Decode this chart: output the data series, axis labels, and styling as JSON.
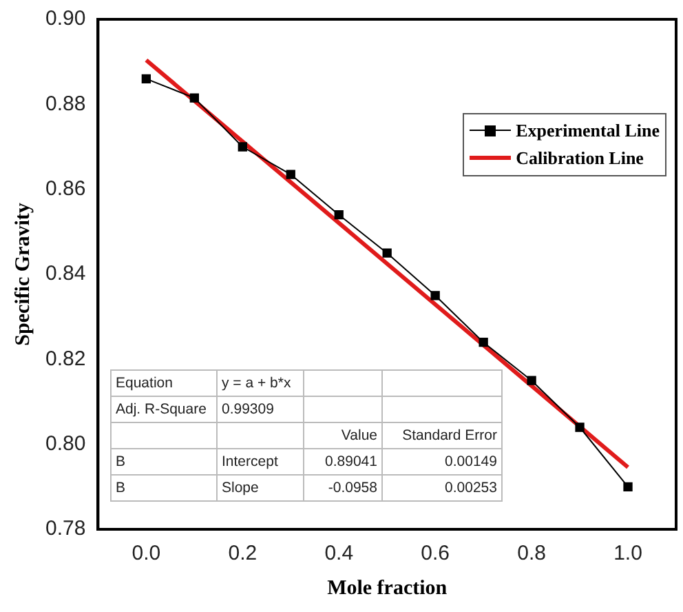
{
  "chart_data": {
    "type": "line",
    "xlabel": "Mole fraction",
    "ylabel": "Specific Gravity",
    "xlim": [
      -0.1,
      1.1
    ],
    "xticks": [
      {
        "value": 0,
        "label": "0.0"
      },
      0.2,
      0.4,
      0.6,
      0.8,
      {
        "value": 1,
        "label": "1.0"
      }
    ],
    "ylim": [
      0.78,
      0.9
    ],
    "yticks": [
      {
        "value": 0.78,
        "label": "0.78"
      },
      {
        "value": 0.8,
        "label": "0.80"
      },
      {
        "value": 0.82,
        "label": "0.82"
      },
      {
        "value": 0.84,
        "label": "0.84"
      },
      {
        "value": 0.86,
        "label": "0.86"
      },
      {
        "value": 0.88,
        "label": "0.88"
      },
      {
        "value": 0.9,
        "label": "0.90"
      }
    ],
    "grid": false,
    "legend": "top right",
    "series": [
      {
        "name": "Experimental Line",
        "color": "#000000",
        "marker": "square",
        "x": [
          0,
          0.1,
          0.2,
          0.3,
          0.4,
          0.5,
          0.6,
          0.7,
          0.8,
          0.9,
          1
        ],
        "values": [
          0.886,
          0.8815,
          0.87,
          0.8635,
          0.854,
          0.845,
          0.835,
          0.824,
          0.815,
          0.804,
          0.79
        ]
      },
      {
        "name": "Calibration Line",
        "color": "#e01b1b",
        "marker": "none",
        "x": [
          0,
          1
        ],
        "values": [
          0.8904,
          0.7946
        ]
      }
    ],
    "annotations": [
      "Equation",
      "y = a + b*x",
      "Adj. R-Square",
      "0.99309",
      "Value",
      "Standard Error",
      "B",
      "Intercept",
      "0.89041",
      "0.00149",
      "B",
      "Slope",
      "-0.0958",
      "0.00253"
    ]
  }
}
